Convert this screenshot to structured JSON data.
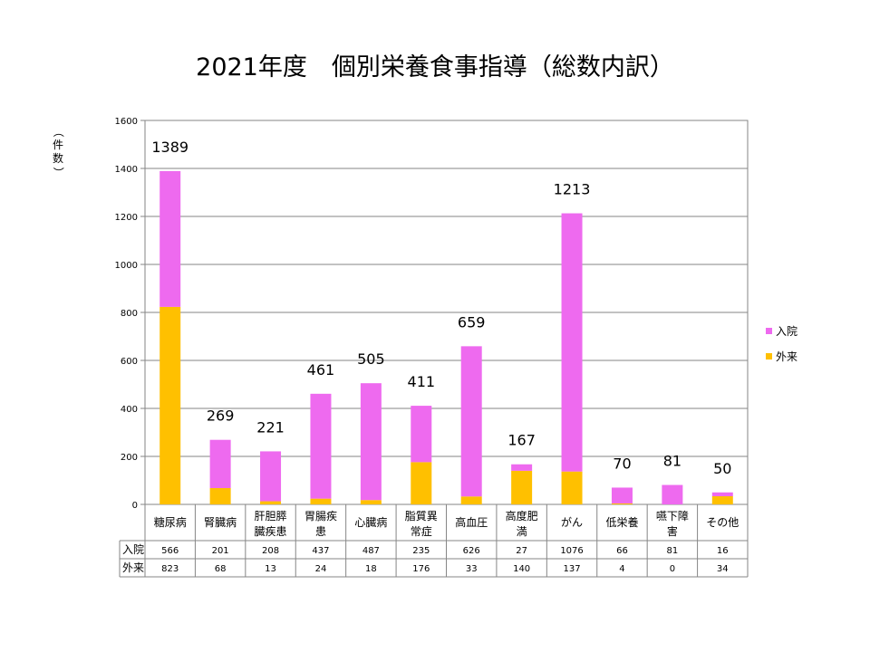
{
  "chart_data": {
    "type": "bar",
    "stacked": true,
    "title": "2021年度　個別栄養食事指導（総数内訳）",
    "ylabel": "（件数）",
    "ylim": [
      0,
      1600
    ],
    "yticks": [
      0,
      200,
      400,
      600,
      800,
      1000,
      1200,
      1400,
      1600
    ],
    "grid": true,
    "legend_position": "right",
    "categories": [
      [
        "糖尿病"
      ],
      [
        "腎臓病"
      ],
      [
        "肝胆膵",
        "臓疾患"
      ],
      [
        "胃腸疾",
        "患"
      ],
      [
        "心臓病"
      ],
      [
        "脂質異",
        "常症"
      ],
      [
        "高血圧"
      ],
      [
        "高度肥",
        "満"
      ],
      [
        "がん"
      ],
      [
        "低栄養"
      ],
      [
        "嚥下障",
        "害"
      ],
      [
        "その他"
      ]
    ],
    "series": [
      {
        "name": "入院",
        "color": "#ee6aef",
        "values": [
          566,
          201,
          208,
          437,
          487,
          235,
          626,
          27,
          1076,
          66,
          81,
          16
        ]
      },
      {
        "name": "外来",
        "color": "#ffc000",
        "values": [
          823,
          68,
          13,
          24,
          18,
          176,
          33,
          140,
          137,
          4,
          0,
          34
        ]
      }
    ],
    "totals": [
      1389,
      269,
      221,
      461,
      505,
      411,
      659,
      167,
      1213,
      70,
      81,
      50
    ]
  }
}
